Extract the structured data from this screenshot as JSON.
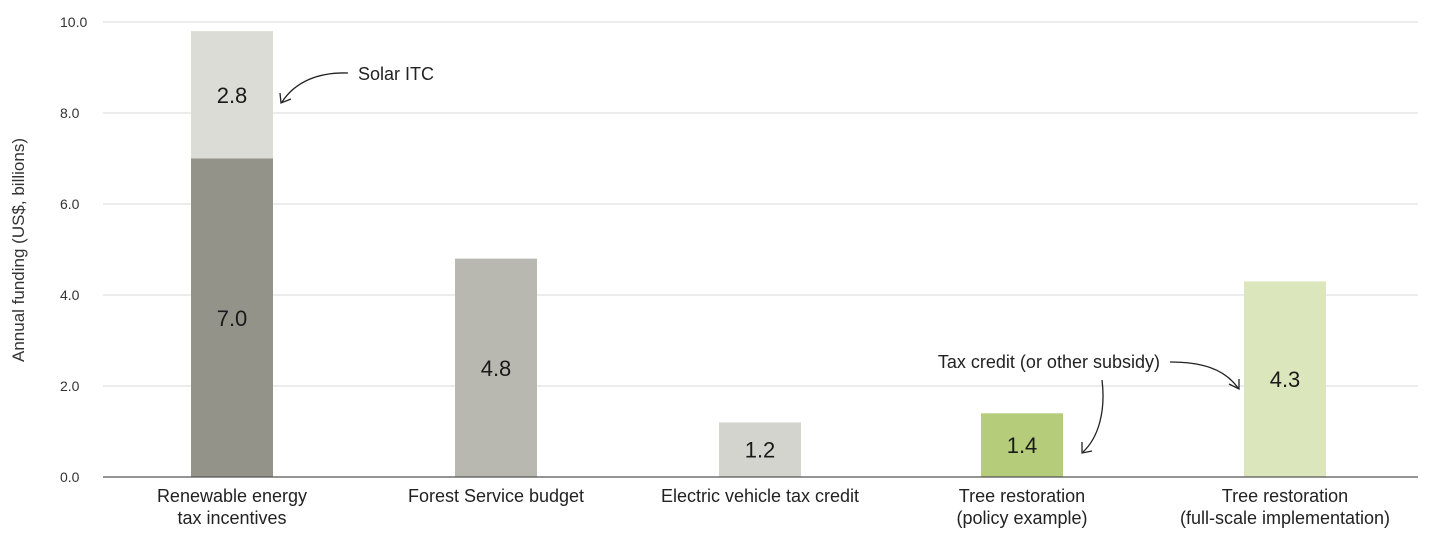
{
  "chart_data": {
    "type": "bar",
    "stacked": true,
    "ylabel": "Annual funding (US$, billions)",
    "ylim": [
      0,
      10
    ],
    "yticks": [
      "0.0",
      "2.0",
      "4.0",
      "6.0",
      "8.0",
      "10.0"
    ],
    "grid": true,
    "categories": [
      [
        "Renewable energy",
        "tax incentives"
      ],
      [
        "Forest Service budget"
      ],
      [
        "Electric vehicle tax credit"
      ],
      [
        "Tree restoration",
        "(policy example)"
      ],
      [
        "Tree restoration",
        "(full-scale implementation)"
      ]
    ],
    "bars": [
      {
        "segments": [
          {
            "value": 7.0,
            "label": "7.0",
            "color": "#94938a"
          },
          {
            "value": 2.8,
            "label": "2.8",
            "color": "#dcdcd7"
          }
        ]
      },
      {
        "segments": [
          {
            "value": 4.8,
            "label": "4.8",
            "color": "#b9b8b0"
          }
        ]
      },
      {
        "segments": [
          {
            "value": 1.2,
            "label": "1.2",
            "color": "#d4d4ce"
          }
        ]
      },
      {
        "segments": [
          {
            "value": 1.4,
            "label": "1.4",
            "color": "#b5cc7a"
          }
        ]
      },
      {
        "segments": [
          {
            "value": 4.3,
            "label": "4.3",
            "color": "#dce6bc"
          }
        ]
      }
    ],
    "annotations": [
      {
        "text": "Solar ITC"
      },
      {
        "text": "Tax credit (or other subsidy)"
      }
    ]
  }
}
